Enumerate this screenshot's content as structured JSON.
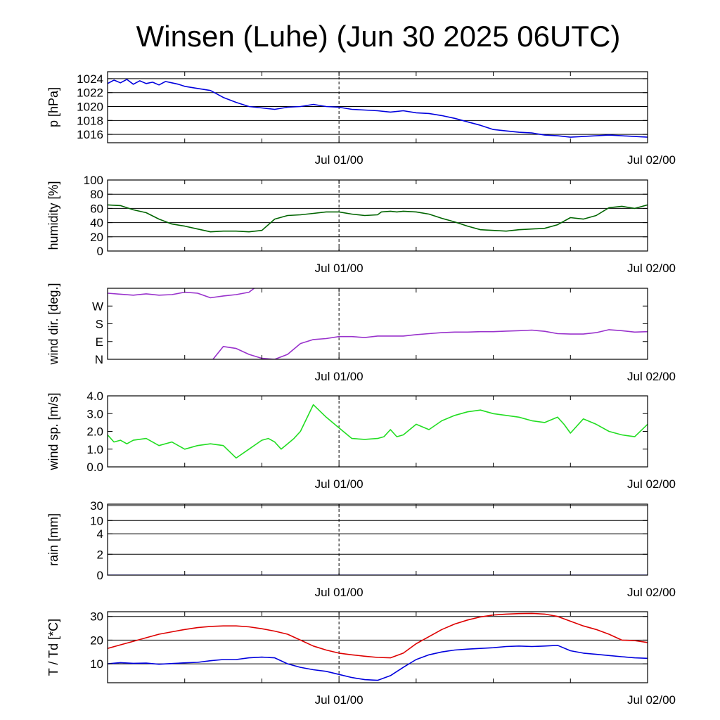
{
  "title": "Winsen (Luhe) (Jun 30 2025 06UTC)",
  "chart_data": [
    {
      "type": "line",
      "ylabel": "p [hPa]",
      "ylim": [
        1014.8,
        1025
      ],
      "yticks": [
        1016,
        1018,
        1020,
        1022,
        1024
      ],
      "ytick_labels": [
        "1016",
        "1018",
        "1020",
        "1022",
        "1024"
      ],
      "xlim": [
        0,
        42
      ],
      "xticks": [
        18,
        42
      ],
      "xtick_labels": [
        "Jul 01/00",
        "Jul 02/00"
      ],
      "grid": "horizontal",
      "color": "#0000dd",
      "series": [
        {
          "x": [
            0,
            0.5,
            1,
            1.5,
            2,
            2.5,
            3,
            3.5,
            4,
            4.5,
            5,
            5.5,
            6,
            7,
            8,
            9,
            10,
            11,
            12,
            13,
            14,
            15,
            16,
            17,
            18,
            19,
            20,
            21,
            22,
            23,
            24,
            25,
            26,
            27,
            28,
            29,
            30,
            31,
            32,
            33,
            34,
            35,
            36,
            37,
            38,
            39,
            40,
            41,
            42
          ],
          "y": [
            1023.3,
            1023.8,
            1023.4,
            1023.9,
            1023.2,
            1023.7,
            1023.3,
            1023.5,
            1023.1,
            1023.6,
            1023.4,
            1023.2,
            1022.9,
            1022.6,
            1022.3,
            1021.3,
            1020.6,
            1020.0,
            1019.8,
            1019.6,
            1019.9,
            1020.0,
            1020.3,
            1020.0,
            1019.9,
            1019.6,
            1019.5,
            1019.4,
            1019.2,
            1019.4,
            1019.1,
            1019.0,
            1018.7,
            1018.3,
            1017.8,
            1017.3,
            1016.7,
            1016.5,
            1016.3,
            1016.2,
            1015.9,
            1015.8,
            1015.6,
            1015.7,
            1015.8,
            1015.9,
            1015.8,
            1015.7,
            1015.6
          ]
        }
      ]
    },
    {
      "type": "line",
      "ylabel": "humidity [%]",
      "ylim": [
        0,
        100
      ],
      "yticks": [
        0,
        20,
        40,
        60,
        80,
        100
      ],
      "ytick_labels": [
        "0",
        "20",
        "40",
        "60",
        "80",
        "100"
      ],
      "xlim": [
        0,
        42
      ],
      "xticks": [
        18,
        42
      ],
      "xtick_labels": [
        "Jul 01/00",
        "Jul 02/00"
      ],
      "grid": "horizontal",
      "color": "#006400",
      "series": [
        {
          "x": [
            0,
            1,
            2,
            3,
            4,
            5,
            6,
            7,
            8,
            9,
            10,
            11,
            12,
            13,
            14,
            15,
            16,
            17,
            18,
            19,
            20,
            21,
            21.3,
            22,
            22.5,
            23,
            24,
            25,
            26,
            27,
            28,
            29,
            30,
            31,
            32,
            33,
            34,
            35,
            36,
            37,
            38,
            39,
            40,
            41,
            42
          ],
          "y": [
            65,
            64,
            58,
            54,
            45,
            38,
            35,
            31,
            27,
            28,
            28,
            27,
            29,
            45,
            50,
            51,
            53,
            55,
            55,
            52,
            50,
            51,
            55,
            56,
            55,
            56,
            55,
            52,
            46,
            41,
            35,
            30,
            29,
            28,
            30,
            31,
            32,
            37,
            47,
            45,
            50,
            61,
            63,
            60,
            65
          ]
        }
      ]
    },
    {
      "type": "line",
      "ylabel": "wind dir. [deg.]",
      "ylim": [
        0,
        360
      ],
      "yticks": [
        0,
        90,
        180,
        270
      ],
      "ytick_labels": [
        "N",
        "E",
        "S",
        "W"
      ],
      "xlim": [
        0,
        42
      ],
      "xticks": [
        18,
        42
      ],
      "xtick_labels": [
        "Jul 01/00",
        "Jul 02/00"
      ],
      "grid": "none",
      "color": "#9932cc",
      "series": [
        {
          "x": [
            0,
            1,
            2,
            3,
            4,
            5,
            6,
            7,
            8,
            9,
            10,
            11,
            11.5
          ],
          "y": [
            335,
            330,
            325,
            332,
            325,
            328,
            340,
            335,
            312,
            321,
            328,
            340,
            365
          ]
        },
        {
          "x": [
            8.2,
            9,
            10,
            11,
            12,
            13,
            14,
            15,
            16,
            17,
            18,
            19,
            20,
            21,
            22,
            23,
            24,
            25,
            26,
            27,
            28,
            29,
            30,
            31,
            32,
            33,
            34,
            35,
            36,
            37,
            38,
            39,
            40,
            41,
            42
          ],
          "y": [
            0,
            65,
            55,
            25,
            5,
            0,
            25,
            80,
            100,
            105,
            115,
            115,
            110,
            118,
            118,
            118,
            125,
            130,
            135,
            138,
            138,
            140,
            140,
            143,
            145,
            148,
            142,
            130,
            128,
            128,
            135,
            150,
            145,
            138,
            140
          ]
        }
      ]
    },
    {
      "type": "line",
      "ylabel": "wind sp. [m/s]",
      "ylim": [
        0,
        4.0
      ],
      "yticks": [
        0,
        1.0,
        2.0,
        3.0,
        4.0
      ],
      "ytick_labels": [
        "0.0",
        "1.0",
        "2.0",
        "3.0",
        "4.0"
      ],
      "xlim": [
        0,
        42
      ],
      "xticks": [
        18,
        42
      ],
      "xtick_labels": [
        "Jul 01/00",
        "Jul 02/00"
      ],
      "grid": "none",
      "color": "#22dd22",
      "series": [
        {
          "x": [
            0,
            0.5,
            1,
            1.5,
            2,
            3,
            4,
            5,
            6,
            7,
            8,
            9,
            10,
            11,
            12,
            12.5,
            13,
            13.5,
            14,
            14.5,
            15,
            16,
            17,
            18,
            19,
            20,
            21,
            21.5,
            22,
            22.5,
            23,
            24,
            25,
            26,
            27,
            28,
            29,
            30,
            31,
            32,
            33,
            34,
            35,
            35.5,
            36,
            37,
            38,
            39,
            40,
            41,
            42
          ],
          "y": [
            1.8,
            1.4,
            1.5,
            1.3,
            1.5,
            1.6,
            1.2,
            1.4,
            1.0,
            1.2,
            1.3,
            1.2,
            0.5,
            1.0,
            1.5,
            1.6,
            1.4,
            1.0,
            1.3,
            1.6,
            2.0,
            3.5,
            2.8,
            2.2,
            1.6,
            1.55,
            1.6,
            1.7,
            2.1,
            1.7,
            1.8,
            2.4,
            2.1,
            2.6,
            2.9,
            3.1,
            3.2,
            3.0,
            2.9,
            2.8,
            2.6,
            2.5,
            2.8,
            2.4,
            1.9,
            2.7,
            2.4,
            2.0,
            1.8,
            1.7,
            2.4
          ]
        }
      ]
    },
    {
      "type": "line",
      "ylabel": "rain [mm]",
      "ylim": [
        0,
        30
      ],
      "yticks": [
        0,
        2,
        4,
        10,
        30
      ],
      "ytick_labels": [
        "0",
        "2",
        "4",
        "10",
        "30"
      ],
      "xlim": [
        0,
        42
      ],
      "xticks": [
        18,
        42
      ],
      "xtick_labels": [
        "Jul 01/00",
        "Jul 02/00"
      ],
      "grid": "horizontal",
      "color": "#0000dd",
      "series": [
        {
          "x": [
            0,
            42
          ],
          "y": [
            0,
            0
          ]
        }
      ]
    },
    {
      "type": "line",
      "ylabel": "T / Td [*C]",
      "ylim": [
        2,
        32
      ],
      "yticks": [
        10,
        20,
        30
      ],
      "ytick_labels": [
        "10",
        "20",
        "30"
      ],
      "xlim": [
        0,
        42
      ],
      "xticks": [
        18,
        42
      ],
      "xtick_labels": [
        "Jul 01/00",
        "Jul 02/00"
      ],
      "grid": "horizontal",
      "series": [
        {
          "color": "#dd0000",
          "x": [
            0,
            1,
            2,
            3,
            4,
            5,
            6,
            7,
            8,
            9,
            10,
            11,
            12,
            13,
            14,
            15,
            16,
            17,
            18,
            19,
            20,
            21,
            22,
            23,
            24,
            25,
            26,
            27,
            28,
            29,
            30,
            31,
            32,
            33,
            34,
            35,
            36,
            37,
            38,
            39,
            40,
            41,
            42
          ],
          "y": [
            16.5,
            18,
            19.5,
            21,
            22.5,
            23.5,
            24.5,
            25.3,
            25.8,
            26,
            26,
            25.6,
            24.8,
            23.8,
            22.5,
            20,
            17.5,
            15.8,
            14.5,
            13.8,
            13.2,
            12.7,
            12.5,
            14.5,
            18.5,
            21.5,
            24.5,
            26.8,
            28.5,
            29.8,
            30.6,
            31,
            31.2,
            31.3,
            31,
            30,
            28,
            26,
            24.5,
            22.5,
            20,
            19.8,
            19
          ]
        },
        {
          "color": "#0000dd",
          "x": [
            0,
            1,
            2,
            3,
            4,
            5,
            6,
            7,
            8,
            9,
            10,
            11,
            12,
            13,
            14,
            15,
            16,
            17,
            18,
            19,
            20,
            21,
            22,
            23,
            24,
            25,
            26,
            27,
            28,
            29,
            30,
            31,
            32,
            33,
            34,
            35,
            36,
            37,
            38,
            39,
            40,
            41,
            42
          ],
          "y": [
            10,
            10.5,
            10.2,
            10.3,
            9.8,
            10.1,
            10.4,
            10.6,
            11.3,
            11.8,
            11.8,
            12.5,
            12.8,
            12.5,
            10,
            8.5,
            7.5,
            6.8,
            5.5,
            4.2,
            3.3,
            3.0,
            5,
            8.5,
            11.8,
            13.8,
            15,
            15.8,
            16.2,
            16.5,
            16.8,
            17.3,
            17.5,
            17.3,
            17.5,
            17.8,
            15.5,
            14.5,
            14,
            13.5,
            13,
            12.5,
            12.3
          ]
        }
      ]
    }
  ]
}
